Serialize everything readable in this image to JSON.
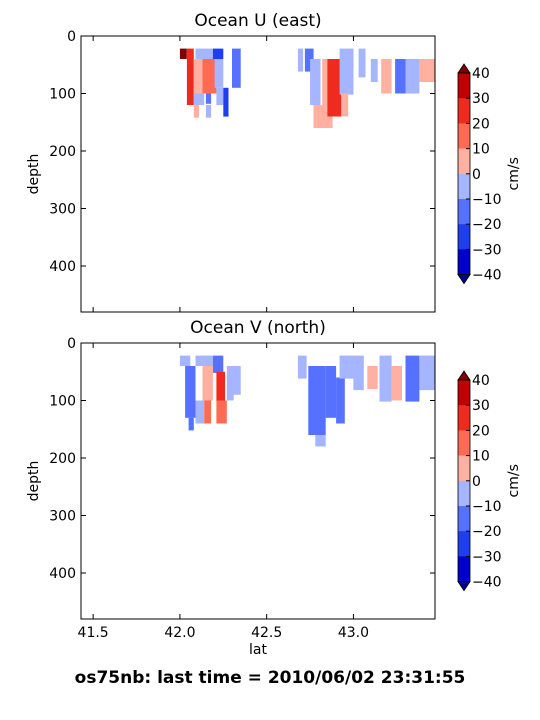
{
  "suptitle": "os75nb: last time = 2010/06/02 23:31:55",
  "colorbar": {
    "label": "cm/s",
    "ticks": [
      "40",
      "30",
      "20",
      "10",
      "0",
      "−10",
      "−20",
      "−30",
      "−40"
    ],
    "levels": [
      -40,
      -30,
      -20,
      -10,
      0,
      10,
      20,
      30,
      40
    ],
    "colors": [
      "#0000cd",
      "#1f3fef",
      "#5670ff",
      "#a5b5ff",
      "#ffb0a0",
      "#ff6a55",
      "#ef2b1f",
      "#c00000"
    ],
    "under_color": "#000090",
    "over_color": "#800000"
  },
  "x_ticks": [
    "41.5",
    "42.0",
    "42.5",
    "43.0"
  ],
  "y_ticks": [
    "0",
    "100",
    "200",
    "300",
    "400"
  ],
  "chart_data": [
    {
      "type": "heatmap",
      "title": "Ocean U (east)",
      "xlabel": "",
      "ylabel": "depth",
      "xlim": [
        41.43,
        43.47
      ],
      "ylim": [
        480,
        0
      ],
      "units": "cm/s",
      "cells": [
        {
          "lat": 42.0,
          "depth": 22,
          "w": 0.04,
          "h": 18,
          "v": 45
        },
        {
          "lat": 42.04,
          "depth": 22,
          "w": 0.04,
          "h": 18,
          "v": 25
        },
        {
          "lat": 42.04,
          "depth": 40,
          "w": 0.04,
          "h": 80,
          "v": 25
        },
        {
          "lat": 42.08,
          "depth": 40,
          "w": 0.05,
          "h": 60,
          "v": 5
        },
        {
          "lat": 42.09,
          "depth": 22,
          "w": 0.1,
          "h": 18,
          "v": -5
        },
        {
          "lat": 42.13,
          "depth": 40,
          "w": 0.08,
          "h": 60,
          "v": 15
        },
        {
          "lat": 42.08,
          "depth": 100,
          "w": 0.06,
          "h": 20,
          "v": -5
        },
        {
          "lat": 42.08,
          "depth": 120,
          "w": 0.03,
          "h": 22,
          "v": 5
        },
        {
          "lat": 42.15,
          "depth": 100,
          "w": 0.03,
          "h": 18,
          "v": -15
        },
        {
          "lat": 42.15,
          "depth": 120,
          "w": 0.03,
          "h": 22,
          "v": -5
        },
        {
          "lat": 42.19,
          "depth": 22,
          "w": 0.06,
          "h": 18,
          "v": -25
        },
        {
          "lat": 42.2,
          "depth": 40,
          "w": 0.05,
          "h": 50,
          "v": -5
        },
        {
          "lat": 42.21,
          "depth": 90,
          "w": 0.04,
          "h": 30,
          "v": -5
        },
        {
          "lat": 42.25,
          "depth": 90,
          "w": 0.03,
          "h": 50,
          "v": -25
        },
        {
          "lat": 42.3,
          "depth": 22,
          "w": 0.05,
          "h": 18,
          "v": -15
        },
        {
          "lat": 42.3,
          "depth": 40,
          "w": 0.05,
          "h": 50,
          "v": -15
        },
        {
          "lat": 42.68,
          "depth": 22,
          "w": 0.03,
          "h": 40,
          "v": -5
        },
        {
          "lat": 42.72,
          "depth": 22,
          "w": 0.05,
          "h": 40,
          "v": -15
        },
        {
          "lat": 42.75,
          "depth": 40,
          "w": 0.06,
          "h": 80,
          "v": -5
        },
        {
          "lat": 42.77,
          "depth": 120,
          "w": 0.11,
          "h": 40,
          "v": 5
        },
        {
          "lat": 42.82,
          "depth": 40,
          "w": 0.06,
          "h": 80,
          "v": 5
        },
        {
          "lat": 42.85,
          "depth": 40,
          "w": 0.08,
          "h": 100,
          "v": 25
        },
        {
          "lat": 42.92,
          "depth": 22,
          "w": 0.08,
          "h": 80,
          "v": -5
        },
        {
          "lat": 42.93,
          "depth": 100,
          "w": 0.04,
          "h": 40,
          "v": 5
        },
        {
          "lat": 43.03,
          "depth": 22,
          "w": 0.04,
          "h": 50,
          "v": -5
        },
        {
          "lat": 43.1,
          "depth": 40,
          "w": 0.04,
          "h": 40,
          "v": -5
        },
        {
          "lat": 43.16,
          "depth": 40,
          "w": 0.06,
          "h": 60,
          "v": 5
        },
        {
          "lat": 43.24,
          "depth": 40,
          "w": 0.06,
          "h": 60,
          "v": -15
        },
        {
          "lat": 43.3,
          "depth": 40,
          "w": 0.08,
          "h": 60,
          "v": -5
        },
        {
          "lat": 43.38,
          "depth": 40,
          "w": 0.09,
          "h": 40,
          "v": 5
        }
      ]
    },
    {
      "type": "heatmap",
      "title": "Ocean V (north)",
      "xlabel": "lat",
      "ylabel": "depth",
      "xlim": [
        41.43,
        43.47
      ],
      "ylim": [
        480,
        0
      ],
      "units": "cm/s",
      "cells": [
        {
          "lat": 42.0,
          "depth": 22,
          "w": 0.06,
          "h": 18,
          "v": -5
        },
        {
          "lat": 42.03,
          "depth": 40,
          "w": 0.06,
          "h": 90,
          "v": -15
        },
        {
          "lat": 42.05,
          "depth": 130,
          "w": 0.03,
          "h": 22,
          "v": -15
        },
        {
          "lat": 42.09,
          "depth": 22,
          "w": 0.1,
          "h": 18,
          "v": -5
        },
        {
          "lat": 42.13,
          "depth": 40,
          "w": 0.06,
          "h": 60,
          "v": 5
        },
        {
          "lat": 42.09,
          "depth": 100,
          "w": 0.05,
          "h": 40,
          "v": -5
        },
        {
          "lat": 42.14,
          "depth": 100,
          "w": 0.04,
          "h": 40,
          "v": 15
        },
        {
          "lat": 42.19,
          "depth": 22,
          "w": 0.06,
          "h": 30,
          "v": -15
        },
        {
          "lat": 42.21,
          "depth": 50,
          "w": 0.05,
          "h": 50,
          "v": 25
        },
        {
          "lat": 42.21,
          "depth": 100,
          "w": 0.06,
          "h": 40,
          "v": 15
        },
        {
          "lat": 42.27,
          "depth": 40,
          "w": 0.04,
          "h": 60,
          "v": -5
        },
        {
          "lat": 42.3,
          "depth": 40,
          "w": 0.05,
          "h": 50,
          "v": -5
        },
        {
          "lat": 42.68,
          "depth": 22,
          "w": 0.05,
          "h": 40,
          "v": -5
        },
        {
          "lat": 42.74,
          "depth": 40,
          "w": 0.1,
          "h": 120,
          "v": -15
        },
        {
          "lat": 42.78,
          "depth": 160,
          "w": 0.06,
          "h": 20,
          "v": -5
        },
        {
          "lat": 42.84,
          "depth": 40,
          "w": 0.06,
          "h": 90,
          "v": -15
        },
        {
          "lat": 42.9,
          "depth": 60,
          "w": 0.05,
          "h": 80,
          "v": -15
        },
        {
          "lat": 42.92,
          "depth": 22,
          "w": 0.08,
          "h": 40,
          "v": -5
        },
        {
          "lat": 43.0,
          "depth": 22,
          "w": 0.06,
          "h": 60,
          "v": -5
        },
        {
          "lat": 43.08,
          "depth": 40,
          "w": 0.06,
          "h": 40,
          "v": 5
        },
        {
          "lat": 43.15,
          "depth": 22,
          "w": 0.07,
          "h": 80,
          "v": -5
        },
        {
          "lat": 43.22,
          "depth": 40,
          "w": 0.06,
          "h": 60,
          "v": 5
        },
        {
          "lat": 43.3,
          "depth": 22,
          "w": 0.08,
          "h": 80,
          "v": -15
        },
        {
          "lat": 43.38,
          "depth": 22,
          "w": 0.09,
          "h": 60,
          "v": -5
        }
      ]
    }
  ]
}
